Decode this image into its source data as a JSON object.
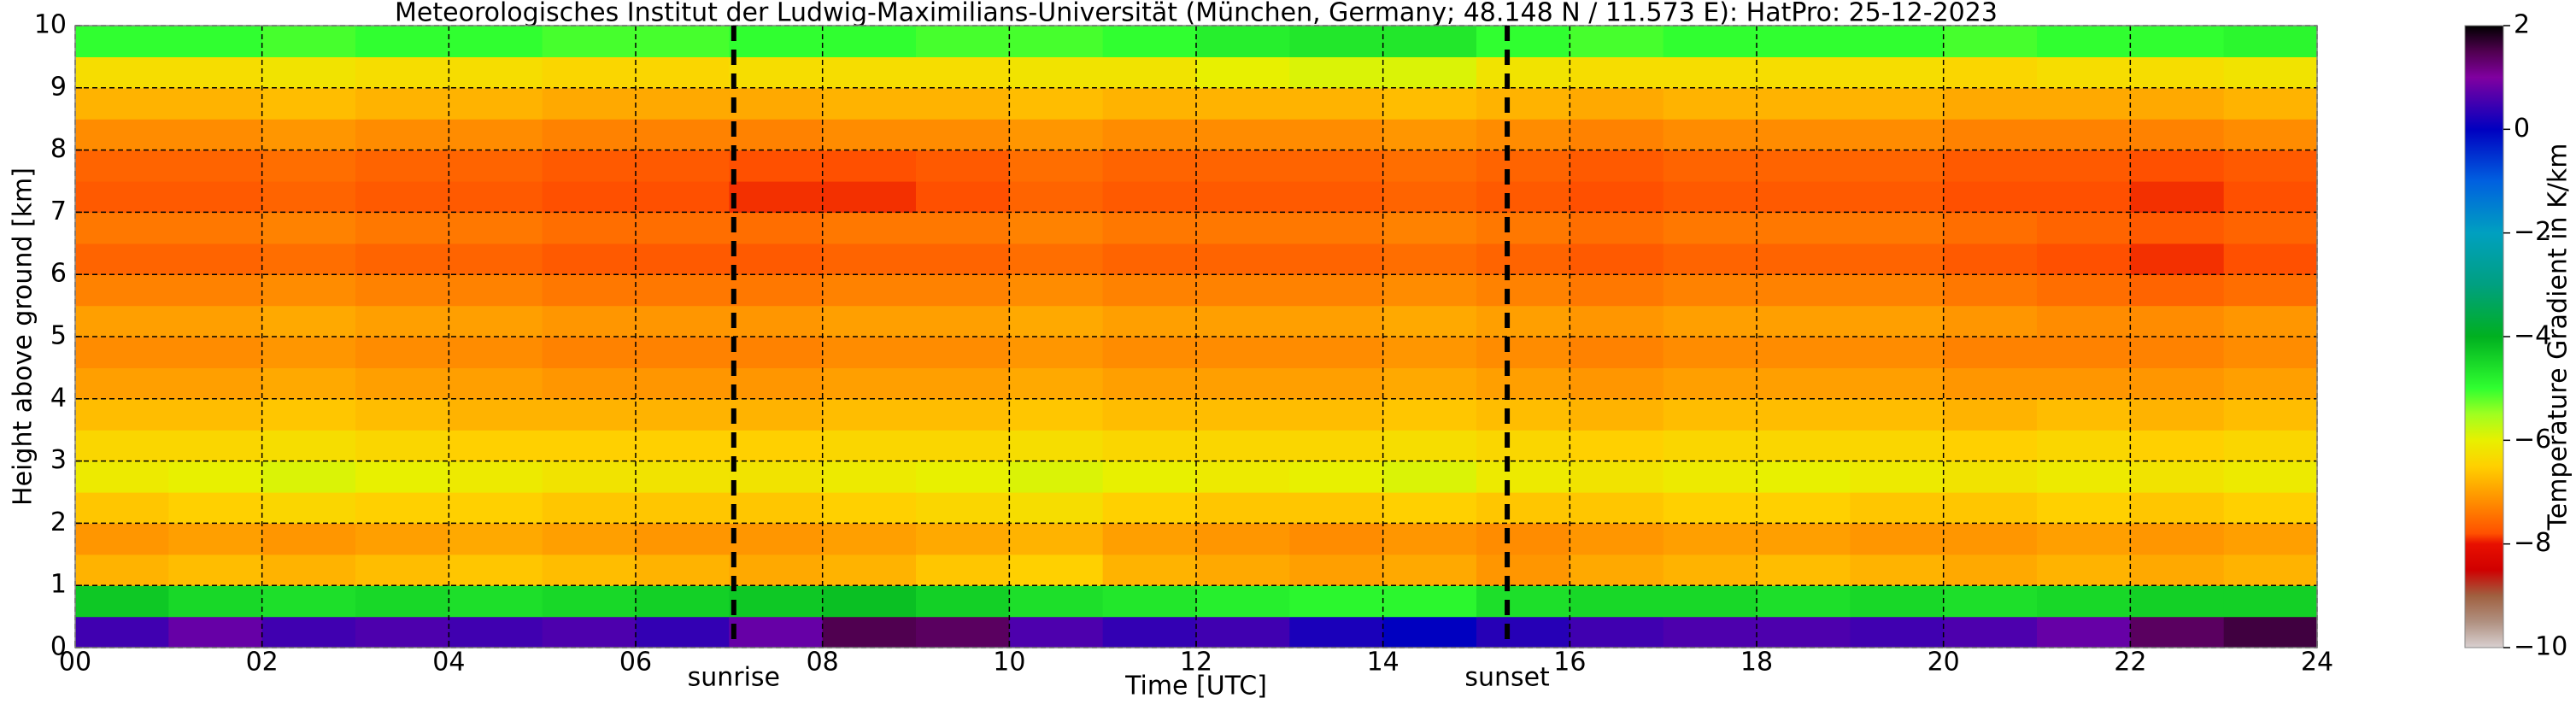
{
  "chart_data": {
    "type": "heatmap",
    "title": "Meteorologisches Institut der Ludwig-Maximilians-Universität (München, Germany; 48.148 N / 11.573 E):    HatPro: 25-12-2023",
    "xlabel": "Time [UTC]",
    "ylabel": "Height above ground [km]",
    "colorbar_label": "Temperature Gradient in K/km",
    "xlim": [
      0,
      24
    ],
    "ylim": [
      0,
      10
    ],
    "clim": [
      -10,
      2
    ],
    "xticks": [
      {
        "value": 0,
        "label": "00"
      },
      {
        "value": 2,
        "label": "02"
      },
      {
        "value": 4,
        "label": "04"
      },
      {
        "value": 6,
        "label": "06"
      },
      {
        "value": 8,
        "label": "08"
      },
      10,
      12,
      14,
      16,
      18,
      20,
      22,
      24
    ],
    "yticks": [
      0,
      1,
      2,
      3,
      4,
      5,
      6,
      7,
      8,
      9,
      10
    ],
    "cticks": [
      2,
      0,
      {
        "value": -2,
        "label": "−2"
      },
      {
        "value": -4,
        "label": "−4"
      },
      {
        "value": -6,
        "label": "−6"
      },
      {
        "value": -8,
        "label": "−8"
      },
      {
        "value": -10,
        "label": "−10"
      }
    ],
    "grid": true,
    "annotations": [
      {
        "x": 7.05,
        "label": "sunrise"
      },
      {
        "x": 15.33,
        "label": "sunset"
      }
    ],
    "colorscale": [
      [
        -10,
        "#d8d0d0"
      ],
      [
        -9.5,
        "#b09080"
      ],
      [
        -9,
        "#a06040"
      ],
      [
        -8.5,
        "#d00000"
      ],
      [
        -8,
        "#e81000"
      ],
      [
        -7.8,
        "#ff5000"
      ],
      [
        -7.2,
        "#ff8c00"
      ],
      [
        -6.5,
        "#ffd000"
      ],
      [
        -6,
        "#e8f000"
      ],
      [
        -5.5,
        "#a0ff20"
      ],
      [
        -5,
        "#30ff30"
      ],
      [
        -4,
        "#00b020"
      ],
      [
        -3,
        "#00a080"
      ],
      [
        -2,
        "#00a0c0"
      ],
      [
        -1,
        "#0060e0"
      ],
      [
        0,
        "#0000c0"
      ],
      [
        0.5,
        "#4000b0"
      ],
      [
        1,
        "#8000a0"
      ],
      [
        1.5,
        "#500050"
      ],
      [
        2,
        "#000000"
      ]
    ],
    "x": [
      0.5,
      1.5,
      2.5,
      3.5,
      4.5,
      5.5,
      6.5,
      7.5,
      8.5,
      9.5,
      10.5,
      11.5,
      12.5,
      13.5,
      14.5,
      15.5,
      16.5,
      17.5,
      18.5,
      19.5,
      20.5,
      21.5,
      22.5,
      23.5
    ],
    "y": [
      0.25,
      0.75,
      1.25,
      1.75,
      2.25,
      2.75,
      3.25,
      3.75,
      4.25,
      4.75,
      5.25,
      5.75,
      6.25,
      6.75,
      7.25,
      7.75,
      8.25,
      8.75,
      9.25,
      9.75
    ],
    "z": [
      [
        0.5,
        0.8,
        0.5,
        0.6,
        0.5,
        0.6,
        0.4,
        0.8,
        1.5,
        1.4,
        0.6,
        0.4,
        0.5,
        0.2,
        0.0,
        0.3,
        0.5,
        0.6,
        0.6,
        0.5,
        0.6,
        0.8,
        1.4,
        1.6
      ],
      [
        -4.3,
        -4.5,
        -4.6,
        -4.5,
        -4.6,
        -4.5,
        -4.4,
        -4.3,
        -4.2,
        -4.4,
        -4.6,
        -4.7,
        -4.8,
        -4.9,
        -4.9,
        -4.6,
        -4.5,
        -4.5,
        -4.6,
        -4.5,
        -4.6,
        -4.5,
        -4.4,
        -4.4
      ],
      [
        -6.8,
        -6.7,
        -6.8,
        -6.7,
        -6.6,
        -6.7,
        -6.8,
        -6.9,
        -6.8,
        -6.6,
        -6.5,
        -6.8,
        -6.9,
        -7.0,
        -6.9,
        -7.1,
        -6.9,
        -6.8,
        -6.7,
        -6.8,
        -6.9,
        -6.8,
        -6.9,
        -6.8
      ],
      [
        -7.1,
        -7.0,
        -7.1,
        -7.0,
        -6.9,
        -7.0,
        -7.1,
        -7.1,
        -7.0,
        -6.9,
        -6.8,
        -7.0,
        -7.1,
        -7.2,
        -7.1,
        -7.2,
        -7.1,
        -7.0,
        -7.0,
        -7.1,
        -7.1,
        -7.0,
        -7.1,
        -7.0
      ],
      [
        -6.6,
        -6.5,
        -6.4,
        -6.5,
        -6.5,
        -6.6,
        -6.6,
        -6.6,
        -6.5,
        -6.4,
        -6.3,
        -6.5,
        -6.6,
        -6.6,
        -6.5,
        -6.6,
        -6.6,
        -6.5,
        -6.5,
        -6.6,
        -6.6,
        -6.5,
        -6.6,
        -6.5
      ],
      [
        -6.1,
        -6.0,
        -5.9,
        -6.0,
        -6.1,
        -6.2,
        -6.2,
        -6.2,
        -6.1,
        -6.0,
        -5.9,
        -6.0,
        -6.1,
        -6.0,
        -5.9,
        -6.1,
        -6.2,
        -6.1,
        -6.0,
        -6.1,
        -6.2,
        -6.1,
        -6.2,
        -6.1
      ],
      [
        -6.4,
        -6.4,
        -6.3,
        -6.4,
        -6.5,
        -6.5,
        -6.5,
        -6.5,
        -6.4,
        -6.4,
        -6.3,
        -6.4,
        -6.4,
        -6.4,
        -6.3,
        -6.4,
        -6.5,
        -6.4,
        -6.4,
        -6.4,
        -6.5,
        -6.4,
        -6.5,
        -6.4
      ],
      [
        -6.7,
        -6.7,
        -6.6,
        -6.7,
        -6.8,
        -6.8,
        -6.8,
        -6.8,
        -6.7,
        -6.7,
        -6.6,
        -6.7,
        -6.7,
        -6.7,
        -6.6,
        -6.7,
        -6.8,
        -6.7,
        -6.7,
        -6.7,
        -6.8,
        -6.7,
        -6.8,
        -6.7
      ],
      [
        -7.0,
        -7.0,
        -6.9,
        -7.0,
        -7.0,
        -7.1,
        -7.1,
        -7.1,
        -7.0,
        -7.0,
        -6.9,
        -7.0,
        -7.0,
        -7.0,
        -6.9,
        -7.0,
        -7.1,
        -7.0,
        -7.0,
        -7.0,
        -7.1,
        -7.1,
        -7.1,
        -7.0
      ],
      [
        -7.2,
        -7.2,
        -7.1,
        -7.2,
        -7.2,
        -7.3,
        -7.3,
        -7.3,
        -7.2,
        -7.2,
        -7.1,
        -7.2,
        -7.2,
        -7.2,
        -7.1,
        -7.2,
        -7.3,
        -7.2,
        -7.2,
        -7.2,
        -7.3,
        -7.3,
        -7.3,
        -7.2
      ],
      [
        -7.0,
        -7.0,
        -6.9,
        -7.0,
        -7.0,
        -7.1,
        -7.1,
        -7.1,
        -7.0,
        -7.0,
        -6.9,
        -7.0,
        -7.0,
        -7.0,
        -6.9,
        -7.0,
        -7.1,
        -7.0,
        -7.0,
        -7.0,
        -7.1,
        -7.2,
        -7.2,
        -7.1
      ],
      [
        -7.3,
        -7.3,
        -7.2,
        -7.3,
        -7.3,
        -7.4,
        -7.4,
        -7.4,
        -7.3,
        -7.3,
        -7.2,
        -7.3,
        -7.3,
        -7.3,
        -7.2,
        -7.3,
        -7.4,
        -7.3,
        -7.3,
        -7.3,
        -7.4,
        -7.5,
        -7.6,
        -7.5
      ],
      [
        -7.6,
        -7.6,
        -7.5,
        -7.6,
        -7.6,
        -7.7,
        -7.7,
        -7.7,
        -7.6,
        -7.6,
        -7.5,
        -7.6,
        -7.6,
        -7.6,
        -7.5,
        -7.6,
        -7.7,
        -7.6,
        -7.6,
        -7.6,
        -7.7,
        -7.8,
        -7.9,
        -7.8
      ],
      [
        -7.4,
        -7.4,
        -7.3,
        -7.4,
        -7.4,
        -7.5,
        -7.5,
        -7.5,
        -7.4,
        -7.4,
        -7.3,
        -7.4,
        -7.4,
        -7.4,
        -7.3,
        -7.4,
        -7.5,
        -7.4,
        -7.4,
        -7.4,
        -7.5,
        -7.6,
        -7.7,
        -7.6
      ],
      [
        -7.7,
        -7.7,
        -7.6,
        -7.7,
        -7.7,
        -7.8,
        -7.8,
        -7.9,
        -7.9,
        -7.8,
        -7.6,
        -7.7,
        -7.7,
        -7.7,
        -7.6,
        -7.7,
        -7.8,
        -7.7,
        -7.7,
        -7.7,
        -7.8,
        -7.8,
        -7.9,
        -7.8
      ],
      [
        -7.6,
        -7.6,
        -7.5,
        -7.6,
        -7.6,
        -7.7,
        -7.7,
        -7.8,
        -7.8,
        -7.7,
        -7.5,
        -7.6,
        -7.6,
        -7.6,
        -7.5,
        -7.6,
        -7.7,
        -7.6,
        -7.6,
        -7.6,
        -7.7,
        -7.7,
        -7.8,
        -7.7
      ],
      [
        -7.2,
        -7.2,
        -7.1,
        -7.2,
        -7.2,
        -7.3,
        -7.3,
        -7.3,
        -7.2,
        -7.2,
        -7.1,
        -7.2,
        -7.2,
        -7.2,
        -7.1,
        -7.2,
        -7.3,
        -7.2,
        -7.2,
        -7.2,
        -7.3,
        -7.3,
        -7.3,
        -7.2
      ],
      [
        -6.8,
        -6.8,
        -6.7,
        -6.8,
        -6.8,
        -6.9,
        -6.9,
        -6.9,
        -6.8,
        -6.8,
        -6.7,
        -6.8,
        -6.8,
        -6.8,
        -6.7,
        -6.8,
        -6.9,
        -6.8,
        -6.8,
        -6.8,
        -6.9,
        -6.9,
        -6.9,
        -6.8
      ],
      [
        -6.3,
        -6.3,
        -6.2,
        -6.3,
        -6.3,
        -6.4,
        -6.4,
        -6.3,
        -6.3,
        -6.3,
        -6.2,
        -6.2,
        -6.0,
        -5.9,
        -5.9,
        -6.2,
        -6.3,
        -6.3,
        -6.3,
        -6.3,
        -6.4,
        -6.3,
        -6.3,
        -6.2
      ],
      [
        -5.0,
        -5.0,
        -5.1,
        -5.0,
        -5.0,
        -5.1,
        -5.1,
        -5.0,
        -5.0,
        -5.1,
        -5.1,
        -5.0,
        -4.8,
        -4.7,
        -4.7,
        -5.0,
        -5.1,
        -5.0,
        -5.0,
        -5.0,
        -5.1,
        -5.0,
        -5.0,
        -4.9
      ]
    ]
  }
}
